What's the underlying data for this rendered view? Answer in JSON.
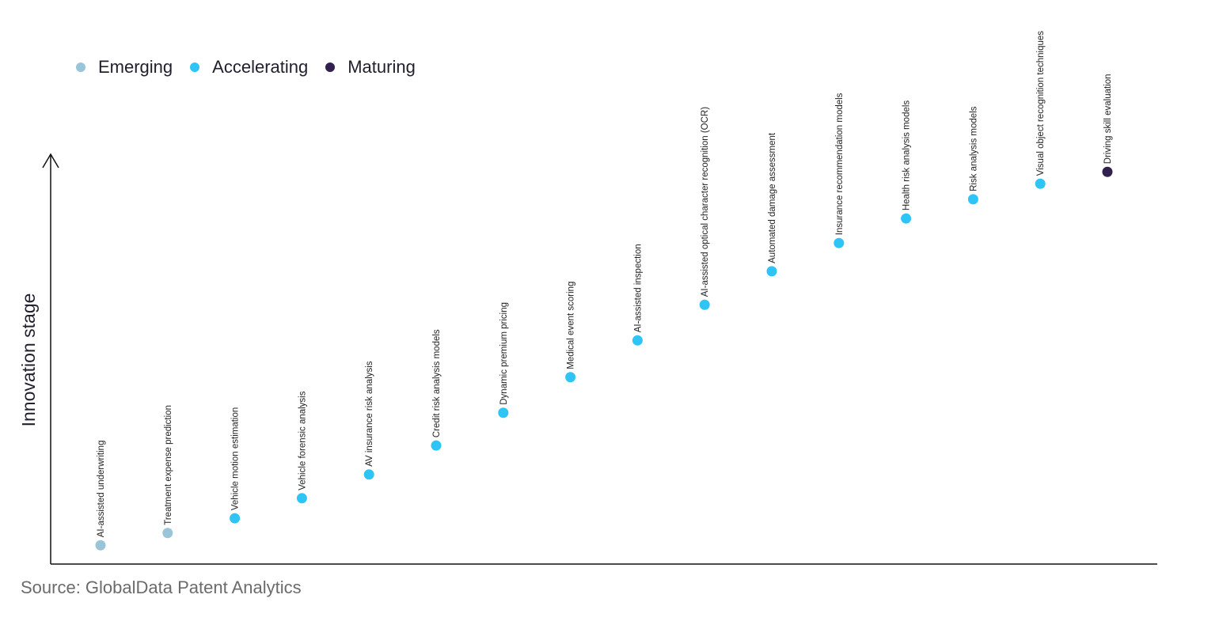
{
  "chart_data": {
    "type": "scatter",
    "ylabel": "Innovation stage",
    "xlabel": "",
    "grid": false,
    "legend_placement": "top-left",
    "y_scale_note": "relative (no ticks printed)",
    "ylim": [
      0,
      100
    ],
    "legend": [
      {
        "name": "Emerging",
        "color": "#9ac4d8"
      },
      {
        "name": "Accelerating",
        "color": "#2ec4f6"
      },
      {
        "name": "Maturing",
        "color": "#32204f"
      }
    ],
    "points": [
      {
        "label": "AI-assisted underwriting",
        "y": 4.4,
        "stage": "Emerging"
      },
      {
        "label": "Treatment expense prediction",
        "y": 7.4,
        "stage": "Emerging"
      },
      {
        "label": "Vehicle motion estimation",
        "y": 11.0,
        "stage": "Accelerating"
      },
      {
        "label": "Vehicle forensic analysis",
        "y": 15.9,
        "stage": "Accelerating"
      },
      {
        "label": "AV insurance risk analysis",
        "y": 21.7,
        "stage": "Accelerating"
      },
      {
        "label": "Credit risk analysis models",
        "y": 28.8,
        "stage": "Accelerating"
      },
      {
        "label": "Dynamic premium pricing",
        "y": 36.8,
        "stage": "Accelerating"
      },
      {
        "label": "Medical event scoring",
        "y": 45.5,
        "stage": "Accelerating"
      },
      {
        "label": "AI-assisted inspection",
        "y": 54.5,
        "stage": "Accelerating"
      },
      {
        "label": "AI-assisted optical character recognition (OCR)",
        "y": 63.2,
        "stage": "Accelerating"
      },
      {
        "label": "Automated damage assessment",
        "y": 71.4,
        "stage": "Accelerating"
      },
      {
        "label": "Insurance recommendation models",
        "y": 78.3,
        "stage": "Accelerating"
      },
      {
        "label": "Health risk analysis models",
        "y": 84.3,
        "stage": "Accelerating"
      },
      {
        "label": "Risk analysis models",
        "y": 89.0,
        "stage": "Accelerating"
      },
      {
        "label": "Visual object recognition techniques",
        "y": 92.8,
        "stage": "Accelerating"
      },
      {
        "label": "Driving skill evaluation",
        "y": 95.7,
        "stage": "Maturing"
      }
    ]
  },
  "source": "Source: GlobalData Patent Analytics"
}
